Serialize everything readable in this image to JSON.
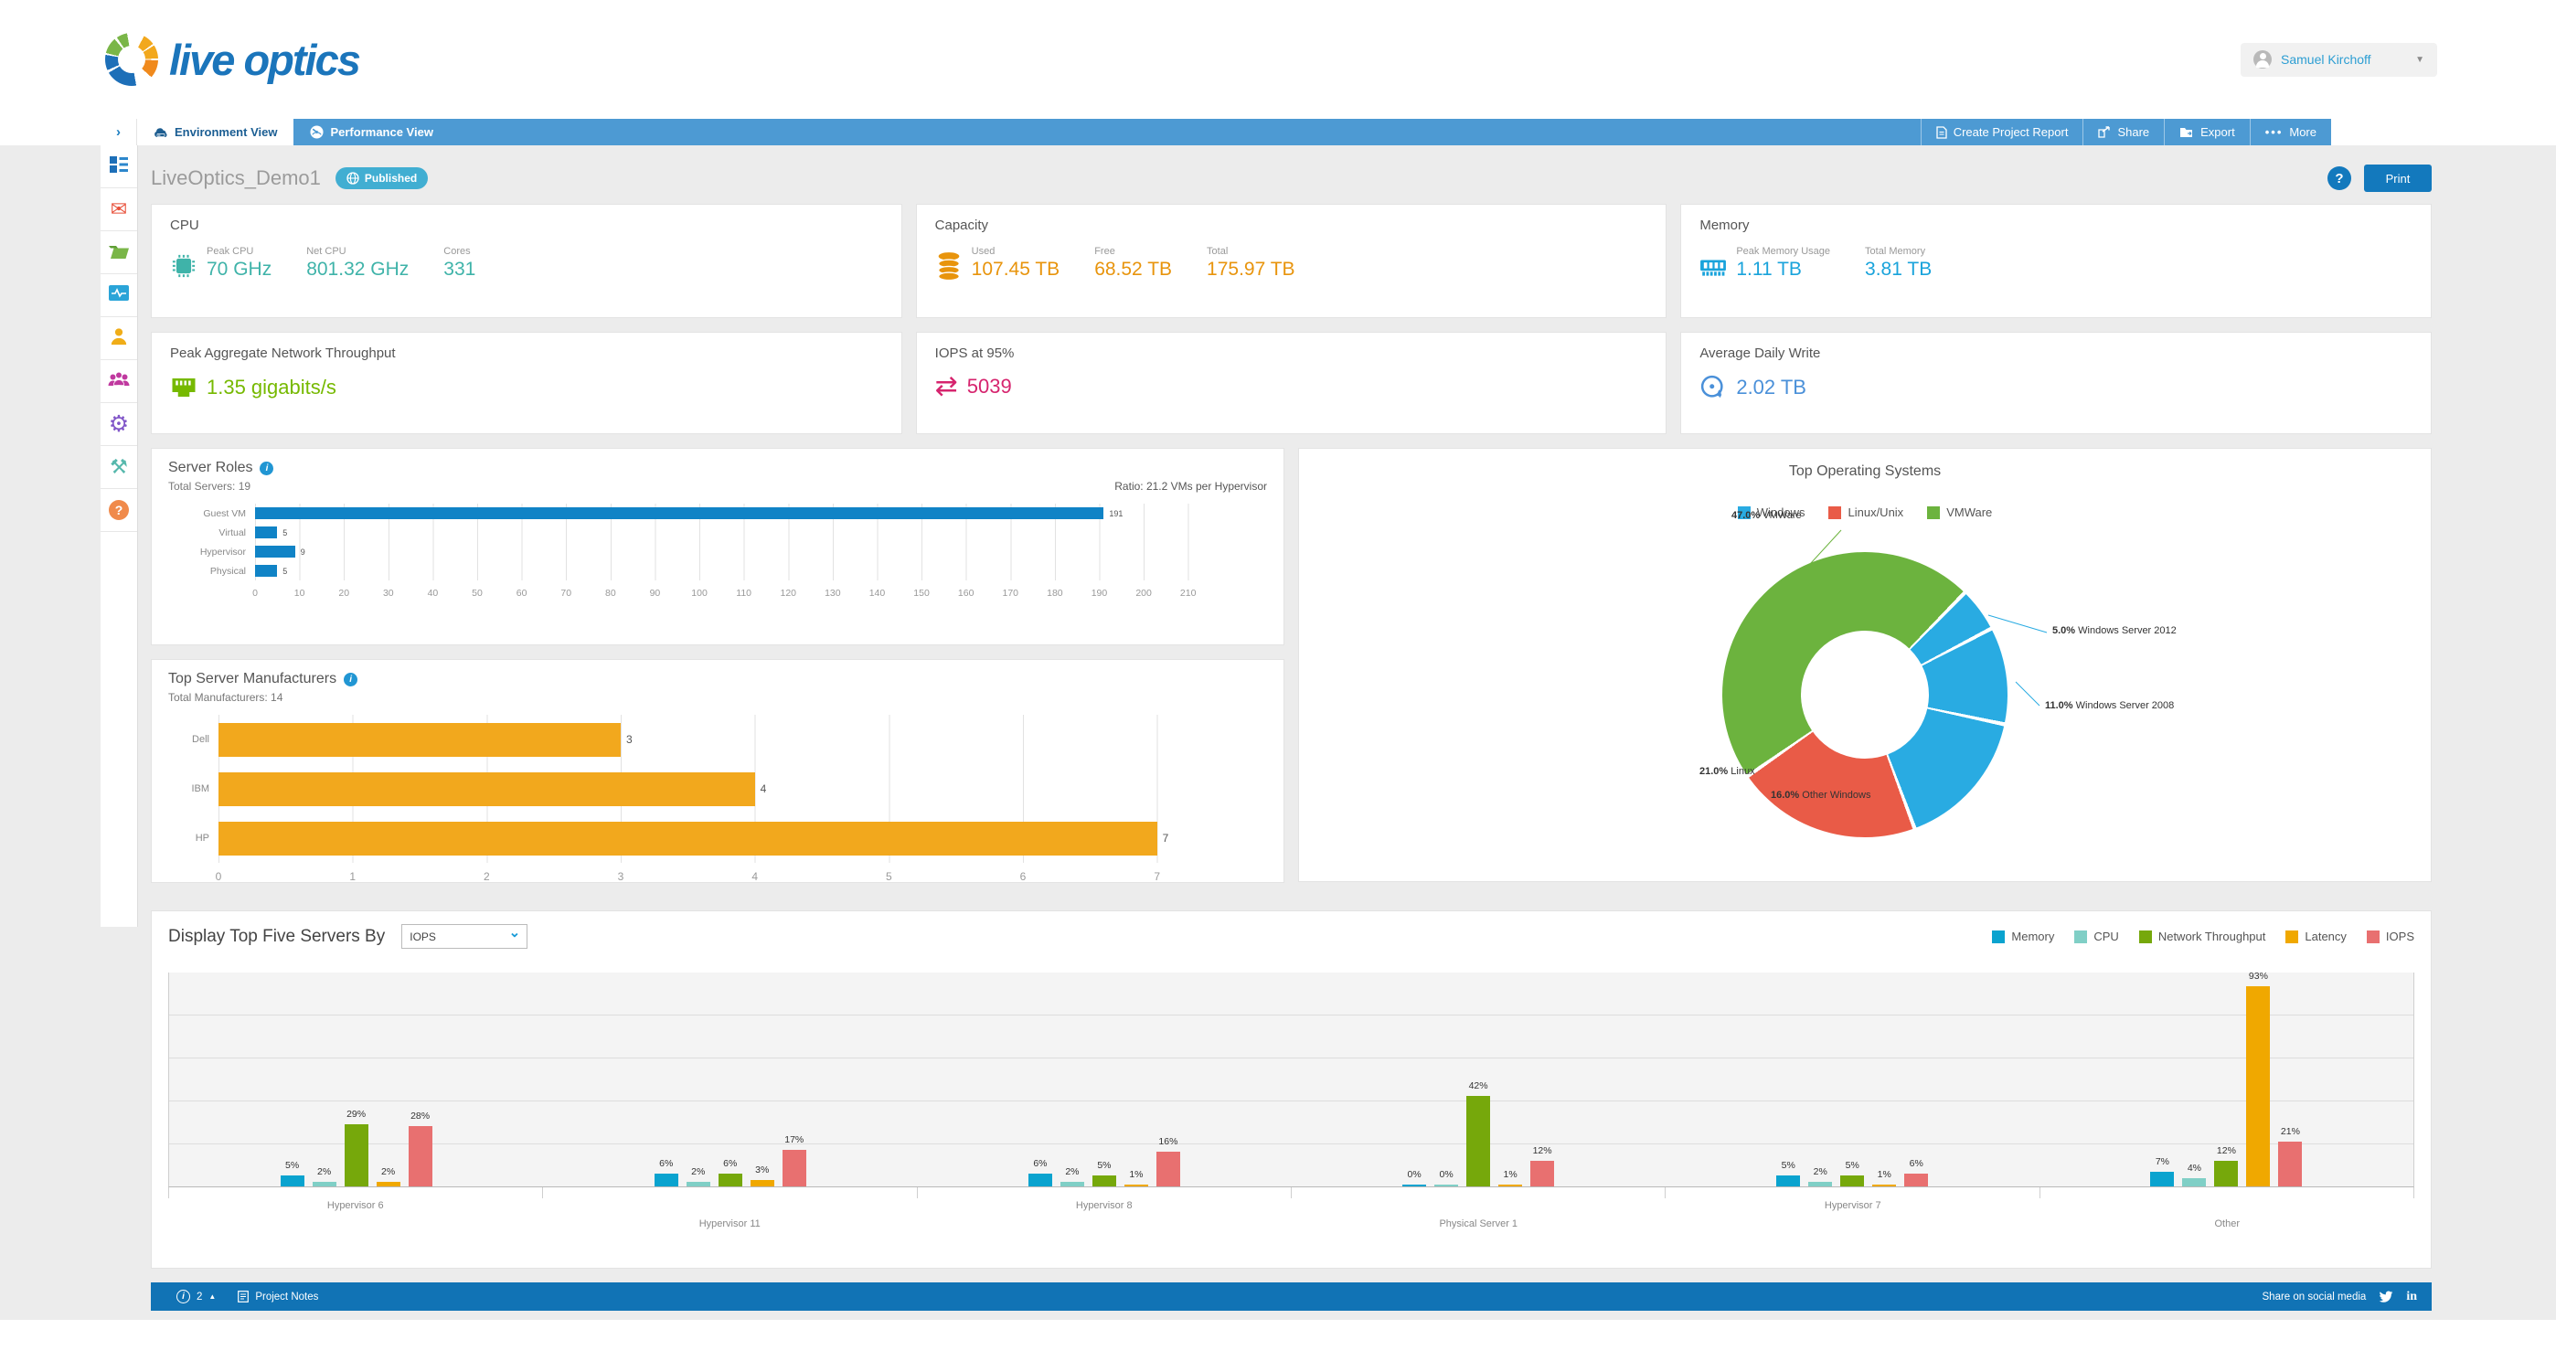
{
  "header": {
    "logo_text": "live optics",
    "user_name": "Samuel Kirchoff"
  },
  "nav": {
    "tabs": [
      {
        "id": "environment",
        "label": "Environment View",
        "active": true
      },
      {
        "id": "performance",
        "label": "Performance View",
        "active": false
      }
    ],
    "actions": [
      {
        "id": "create-report",
        "label": "Create Project Report"
      },
      {
        "id": "share",
        "label": "Share"
      },
      {
        "id": "export",
        "label": "Export"
      },
      {
        "id": "more",
        "label": "More"
      }
    ]
  },
  "toolbar": {
    "title": "LiveOptics_Demo1",
    "status_badge": "Published",
    "print_label": "Print",
    "help_label": "?"
  },
  "sidebar": {
    "items": [
      "dashboard",
      "mail",
      "folder",
      "activity",
      "user",
      "users",
      "settings",
      "tools",
      "help"
    ]
  },
  "stats": {
    "cpu": {
      "title": "CPU",
      "color": "#3fb3a9",
      "metrics": [
        {
          "label": "Peak CPU",
          "value": "70 GHz"
        },
        {
          "label": "Net CPU",
          "value": "801.32 GHz"
        },
        {
          "label": "Cores",
          "value": "331"
        }
      ]
    },
    "capacity": {
      "title": "Capacity",
      "color": "#e8940c",
      "metrics": [
        {
          "label": "Used",
          "value": "107.45 TB"
        },
        {
          "label": "Free",
          "value": "68.52 TB"
        },
        {
          "label": "Total",
          "value": "175.97 TB"
        }
      ]
    },
    "memory": {
      "title": "Memory",
      "color": "#19a3db",
      "metrics": [
        {
          "label": "Peak Memory Usage",
          "value": "1.11 TB"
        },
        {
          "label": "Total Memory",
          "value": "3.81 TB"
        }
      ]
    },
    "network": {
      "title": "Peak Aggregate Network Throughput",
      "value": "1.35 gigabits/s",
      "color": "#76b900"
    },
    "iops": {
      "title": "IOPS at 95%",
      "value": "5039",
      "color": "#d6246e"
    },
    "daily_write": {
      "title": "Average Daily Write",
      "value": "2.02 TB",
      "color": "#4a90d9"
    }
  },
  "chart_data": [
    {
      "id": "server_roles",
      "type": "bar",
      "orientation": "horizontal",
      "title": "Server Roles",
      "subtitle": "Total Servers: 19",
      "annotation": "Ratio: 21.2 VMs per Hypervisor",
      "categories": [
        "Guest VM",
        "Virtual",
        "Hypervisor",
        "Physical"
      ],
      "values": [
        191,
        5,
        9,
        5
      ],
      "bar_color": "#1083c6",
      "xmax": 215,
      "tick_step": 10,
      "xticks": [
        0,
        10,
        20,
        30,
        40,
        50,
        60,
        70,
        80,
        90,
        100,
        110,
        120,
        130,
        140,
        150,
        160,
        170,
        180,
        190,
        200,
        210
      ]
    },
    {
      "id": "manufacturers",
      "type": "bar",
      "orientation": "horizontal",
      "title": "Top Server Manufacturers",
      "subtitle": "Total Manufacturers: 14",
      "categories": [
        "Dell",
        "IBM",
        "HP"
      ],
      "values": [
        3,
        4,
        7
      ],
      "bar_color": "#f2a81d",
      "xmax": 7.5,
      "tick_step": 1,
      "xticks": [
        0,
        1,
        2,
        3,
        4,
        5,
        6,
        7
      ]
    },
    {
      "id": "top_os",
      "type": "donut",
      "title": "Top Operating Systems",
      "legend": [
        {
          "label": "Windows",
          "color": "#29abe2"
        },
        {
          "label": "Linux/Unix",
          "color": "#e95b47"
        },
        {
          "label": "VMWare",
          "color": "#6cb33e"
        }
      ],
      "start_angle": 236,
      "slices": [
        {
          "label": "VMWare",
          "pct": 47.0,
          "pct_label": "47.0%",
          "color": "#6cb33e"
        },
        {
          "label": "Windows Server 2012",
          "pct": 5.0,
          "pct_label": "5.0%",
          "color": "#29abe2"
        },
        {
          "label": "Windows Server 2008",
          "pct": 11.0,
          "pct_label": "11.0%",
          "color": "#29abe2"
        },
        {
          "label": "Other Windows",
          "pct": 16.0,
          "pct_label": "16.0%",
          "color": "#29abe2"
        },
        {
          "label": "Linux",
          "pct": 21.0,
          "pct_label": "21.0%",
          "color": "#e95b47"
        }
      ]
    },
    {
      "id": "top5",
      "type": "grouped-bar",
      "control_label": "Display Top Five Servers By",
      "dropdown_value": "IOPS",
      "ymax": 100,
      "grid_step_pct": 20,
      "series": [
        {
          "name": "Memory",
          "color": "#0aa3cf"
        },
        {
          "name": "CPU",
          "color": "#80cfc6"
        },
        {
          "name": "Network Throughput",
          "color": "#76a80b"
        },
        {
          "name": "Latency",
          "color": "#f0a800"
        },
        {
          "name": "IOPS",
          "color": "#e87070"
        }
      ],
      "categories": [
        "Hypervisor 6",
        "Hypervisor 11",
        "Hypervisor 8",
        "Physical Server 1",
        "Hypervisor 7",
        "Other"
      ],
      "values": [
        [
          5,
          2,
          29,
          2,
          28
        ],
        [
          6,
          2,
          6,
          3,
          17
        ],
        [
          6,
          2,
          5,
          1,
          16
        ],
        [
          0,
          0,
          42,
          1,
          12
        ],
        [
          5,
          2,
          5,
          1,
          6
        ],
        [
          7,
          4,
          12,
          93,
          21
        ]
      ]
    }
  ],
  "footer": {
    "count": "2",
    "notes_label": "Project Notes",
    "share_label": "Share on social media"
  }
}
